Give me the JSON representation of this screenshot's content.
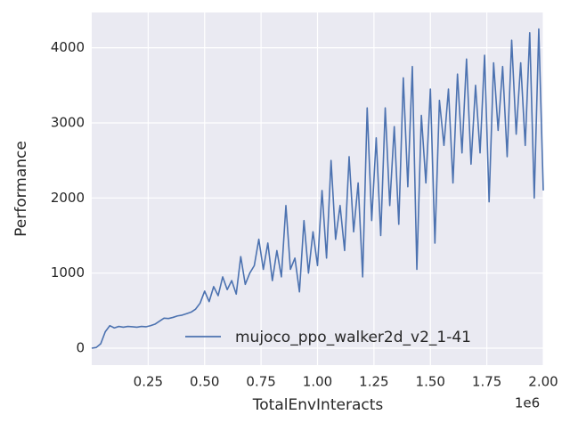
{
  "chart_data": {
    "type": "line",
    "x_label": "TotalEnvInteracts",
    "y_label": "Performance",
    "x_offset_label": "1e6",
    "x": [
      0,
      0.02,
      0.04,
      0.06,
      0.08,
      0.1,
      0.12,
      0.14,
      0.16,
      0.18,
      0.2,
      0.22,
      0.24,
      0.26,
      0.28,
      0.3,
      0.32,
      0.34,
      0.36,
      0.38,
      0.4,
      0.42,
      0.44,
      0.46,
      0.48,
      0.5,
      0.52,
      0.54,
      0.56,
      0.58,
      0.6,
      0.62,
      0.64,
      0.66,
      0.68,
      0.7,
      0.72,
      0.74,
      0.76,
      0.78,
      0.8,
      0.82,
      0.84,
      0.86,
      0.88,
      0.9,
      0.92,
      0.94,
      0.96,
      0.98,
      1.0,
      1.02,
      1.04,
      1.06,
      1.08,
      1.1,
      1.12,
      1.14,
      1.16,
      1.18,
      1.2,
      1.22,
      1.24,
      1.26,
      1.28,
      1.3,
      1.32,
      1.34,
      1.36,
      1.38,
      1.4,
      1.42,
      1.44,
      1.46,
      1.48,
      1.5,
      1.52,
      1.54,
      1.56,
      1.58,
      1.6,
      1.62,
      1.64,
      1.66,
      1.68,
      1.7,
      1.72,
      1.74,
      1.76,
      1.78,
      1.8,
      1.82,
      1.84,
      1.86,
      1.88,
      1.9,
      1.92,
      1.94,
      1.96,
      1.98,
      2.0
    ],
    "series": [
      {
        "name": "mujoco_ppo_walker2d_v2_1-41",
        "color": "#4c72b0",
        "values": [
          0,
          10,
          60,
          220,
          300,
          270,
          290,
          280,
          290,
          285,
          280,
          290,
          285,
          300,
          320,
          360,
          400,
          395,
          410,
          430,
          440,
          460,
          480,
          520,
          600,
          760,
          620,
          820,
          700,
          950,
          780,
          900,
          720,
          1220,
          850,
          1000,
          1100,
          1450,
          1050,
          1400,
          900,
          1300,
          950,
          1900,
          1050,
          1200,
          750,
          1700,
          1000,
          1550,
          1100,
          2100,
          1200,
          2500,
          1450,
          1900,
          1300,
          2550,
          1550,
          2200,
          950,
          3200,
          1700,
          2800,
          1500,
          3200,
          1900,
          2950,
          1650,
          3600,
          2150,
          3750,
          1050,
          3100,
          2200,
          3450,
          1400,
          3300,
          2700,
          3450,
          2200,
          3650,
          2600,
          3850,
          2450,
          3500,
          2600,
          3900,
          1950,
          3800,
          2900,
          3750,
          2550,
          4100,
          2850,
          3800,
          2700,
          4200,
          2000,
          4250,
          2100
        ]
      }
    ],
    "xlim": [
      0,
      2
    ],
    "ylim": [
      -225,
      4470
    ],
    "xticks": [
      0.25,
      {
        "value": 0.5,
        "label": "0.50"
      },
      0.75,
      {
        "value": 1,
        "label": "1.00"
      },
      1.25,
      {
        "value": 1.5,
        "label": "1.50"
      },
      1.75,
      {
        "value": 2,
        "label": "2.00"
      }
    ],
    "yticks": [
      0,
      1000,
      2000,
      3000,
      4000
    ],
    "grid": true,
    "legend": "lower right"
  }
}
